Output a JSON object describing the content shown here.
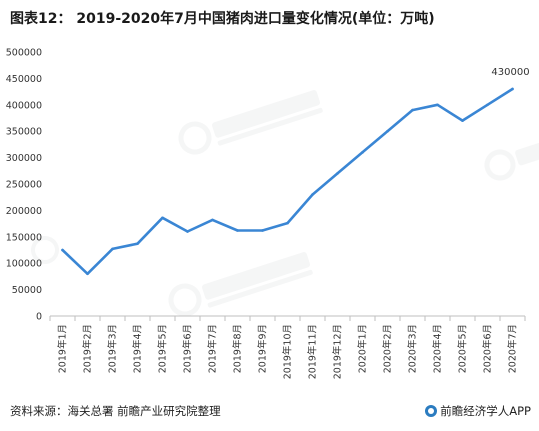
{
  "title": "图表12： 2019-2020年7月中国猪肉进口量变化情况(单位：万吨)",
  "footer": {
    "source": "资料来源：海关总署 前瞻产业研究院整理",
    "brand": "前瞻经济学人APP",
    "brand_icon": "qianzhan-logo-icon"
  },
  "colors": {
    "line": "#3a86d4",
    "axis": "#bfbfbf"
  },
  "chart_data": {
    "type": "line",
    "title": "图表12： 2019-2020年7月中国猪肉进口量变化情况(单位：万吨)",
    "xlabel": "",
    "ylabel": "",
    "ylim": [
      0,
      500000
    ],
    "yticks": [
      0,
      50000,
      100000,
      150000,
      200000,
      250000,
      300000,
      350000,
      400000,
      450000,
      500000
    ],
    "grid": false,
    "categories": [
      "2019年1月",
      "2019年2月",
      "2019年3月",
      "2019年4月",
      "2019年5月",
      "2019年6月",
      "2019年7月",
      "2019年8月",
      "2019年9月",
      "2019年10月",
      "2019年11月",
      "2019年12月",
      "2020年1月",
      "2020年2月",
      "2020年3月",
      "2020年4月",
      "2020年5月",
      "2020年6月",
      "2020年7月"
    ],
    "series": [
      {
        "values": [
          125000,
          80000,
          127000,
          137000,
          186000,
          160000,
          182000,
          162000,
          162000,
          176000,
          230000,
          270000,
          310000,
          350000,
          390000,
          400000,
          370000,
          400000,
          430000
        ]
      }
    ],
    "annotations": [
      {
        "category": "2020年7月",
        "text": "430000"
      }
    ]
  }
}
